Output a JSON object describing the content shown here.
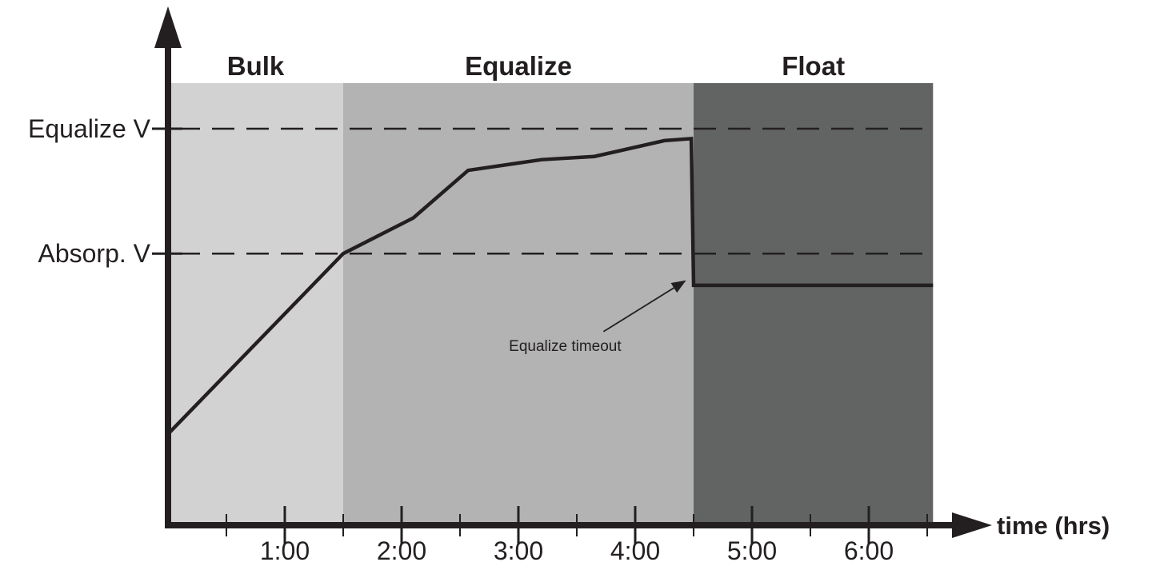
{
  "chart_data": {
    "type": "line",
    "x_unit": "hours",
    "x_ticks": [
      {
        "value": 1,
        "label": "1:00"
      },
      {
        "value": 2,
        "label": "2:00"
      },
      {
        "value": 3,
        "label": "3:00"
      },
      {
        "value": 4,
        "label": "4:00"
      },
      {
        "value": 5,
        "label": "5:00"
      },
      {
        "value": 6,
        "label": "6:00"
      }
    ],
    "minor_ticks": [
      0.5,
      1.5,
      2.5,
      3.5,
      4.5,
      5.5,
      6.5
    ],
    "xlabel": "time (hrs)",
    "ylabel": "",
    "xlim": [
      0,
      6.9
    ],
    "ylim": [
      0,
      1.1
    ],
    "stages": [
      {
        "name": "Bulk",
        "start": 0,
        "end": 1.5,
        "color": "#d3d2d3"
      },
      {
        "name": "Equalize",
        "start": 1.5,
        "end": 4.5,
        "color": "#b2b3b2"
      },
      {
        "name": "Float",
        "start": 4.5,
        "end": 6.55,
        "color": "#626463"
      }
    ],
    "levels": [
      {
        "label": "Equalize V",
        "value": 1.0
      },
      {
        "label": "Absorp. V",
        "value": 0.685
      }
    ],
    "series": [
      {
        "points": [
          [
            0,
            0.23
          ],
          [
            1.5,
            0.685
          ],
          [
            2.1,
            0.775
          ],
          [
            2.57,
            0.895
          ],
          [
            3.2,
            0.922
          ],
          [
            3.65,
            0.93
          ],
          [
            4.25,
            0.97
          ],
          [
            4.48,
            0.975
          ],
          [
            4.5,
            0.605
          ],
          [
            6.55,
            0.605
          ]
        ]
      }
    ],
    "annotations": [
      {
        "text": "Equalize timeout",
        "x": 3.4,
        "y": 0.44,
        "arrow_to": [
          4.48,
          0.64
        ]
      }
    ],
    "legend": "none",
    "grid": false
  }
}
